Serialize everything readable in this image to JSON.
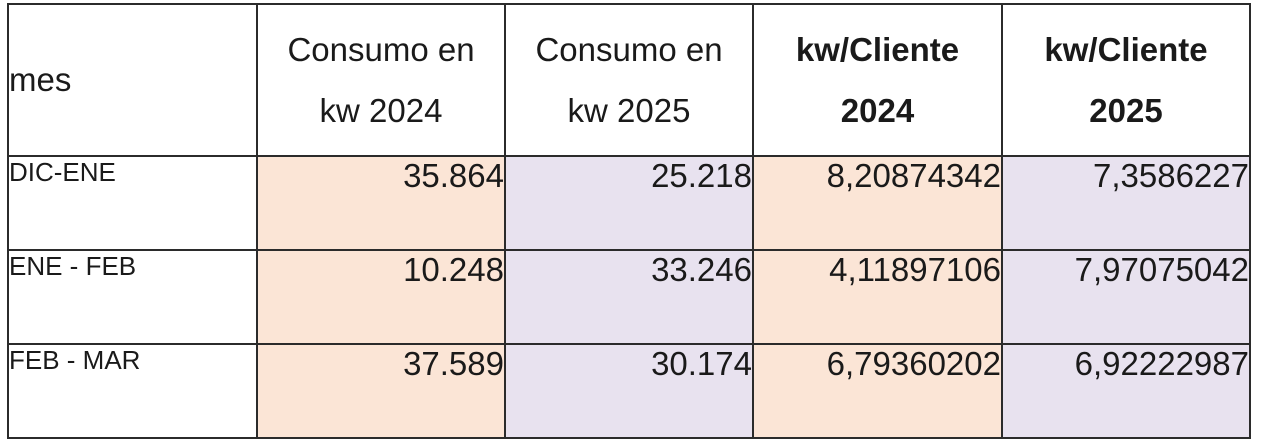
{
  "table": {
    "headers": [
      {
        "lines": [
          "mes"
        ],
        "bold": false
      },
      {
        "lines": [
          "Consumo en",
          "kw 2024"
        ],
        "bold": false
      },
      {
        "lines": [
          "Consumo en",
          "kw 2025"
        ],
        "bold": false
      },
      {
        "lines": [
          "kw/Cliente",
          "2024"
        ],
        "bold": true
      },
      {
        "lines": [
          "kw/Cliente",
          "2025"
        ],
        "bold": true
      }
    ],
    "rows": [
      {
        "mes": "DIC-ENE",
        "consumo_2024": "35.864",
        "consumo_2025": "25.218",
        "kw_cliente_2024": "8,20874342",
        "kw_cliente_2025": "7,3586227"
      },
      {
        "mes": "ENE - FEB",
        "consumo_2024": "10.248",
        "consumo_2025": "33.246",
        "kw_cliente_2024": "4,11897106",
        "kw_cliente_2025": "7,97075042"
      },
      {
        "mes": "FEB - MAR",
        "consumo_2024": "37.589",
        "consumo_2025": "30.174",
        "kw_cliente_2024": "6,79360202",
        "kw_cliente_2025": "6,92222987"
      }
    ]
  },
  "colors": {
    "col_2024_fill": "#fbe5d6",
    "col_2025_fill": "#e8e2ef",
    "border": "#2b2b2b"
  }
}
